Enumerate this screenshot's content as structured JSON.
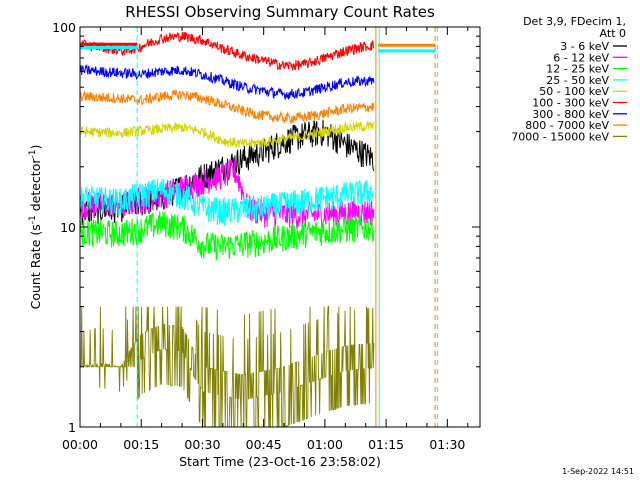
{
  "chart_data": {
    "type": "line",
    "title": "RHESSI Observing Summary Count Rates",
    "xlabel": "Start Time (23-Oct-16 23:58:02)",
    "ylabel": "Count Rate (s",
    "ylabel_sup": "-1",
    "ylabel_rest": " detector",
    "ylabel_sup2": "-1",
    "ylabel_end": ")",
    "y_scale": "log",
    "ylim": [
      1,
      100
    ],
    "xlim_minutes": [
      0,
      98
    ],
    "x_tick_labels": [
      "00:00",
      "00:15",
      "00:30",
      "00:45",
      "01:00",
      "01:15",
      "01:30"
    ],
    "x_tick_minutes": [
      0,
      15,
      30,
      45,
      60,
      75,
      90
    ],
    "y_tick_labels": [
      "1",
      "10",
      "100"
    ],
    "y_tick_values": [
      1,
      10,
      100
    ],
    "legend_header": [
      "Det 3,9, FDecim 1,",
      "Att 0"
    ],
    "legend_placement": "right",
    "footer": "1-Sep-2022 14:51",
    "background_color": "#ffffff",
    "series": [
      {
        "name": "3 - 6 keV",
        "color": "#000000",
        "x": [
          0,
          10,
          20,
          25,
          30,
          35,
          40,
          45,
          50,
          55,
          60,
          65,
          72
        ],
        "y": [
          12,
          12.5,
          14,
          16,
          18,
          20,
          22,
          24,
          27,
          29,
          30,
          26,
          22
        ]
      },
      {
        "name": "6 - 12 keV",
        "color": "#ff00ff",
        "x": [
          0,
          10,
          20,
          30,
          38,
          39,
          41,
          45,
          55,
          65,
          72
        ],
        "y": [
          13,
          13,
          14.5,
          17,
          19,
          17,
          12.5,
          11.8,
          11.5,
          11.8,
          12
        ]
      },
      {
        "name": "12 - 25 keV",
        "color": "#00ff00",
        "x": [
          0,
          10,
          15,
          20,
          25,
          30,
          35,
          45,
          55,
          65,
          72
        ],
        "y": [
          9.5,
          9.3,
          9.8,
          10.5,
          10,
          8.2,
          8,
          8.5,
          9.3,
          9.8,
          10
        ]
      },
      {
        "name": "25 - 50 keV",
        "color": "#00ffff",
        "x": [
          0,
          10,
          15,
          20,
          25,
          30,
          35,
          45,
          55,
          65,
          72
        ],
        "y": [
          14,
          13.5,
          14.5,
          15.5,
          14.5,
          12.5,
          12,
          12.5,
          13.5,
          14.5,
          15
        ]
      },
      {
        "name": "50 - 100 keV",
        "color": "#d4d400",
        "x": [
          0,
          10,
          20,
          25,
          30,
          35,
          40,
          45,
          50,
          55,
          60,
          65,
          72
        ],
        "y": [
          30,
          29.5,
          31,
          31.5,
          30,
          27,
          26,
          26.5,
          27.5,
          28.5,
          30,
          31.5,
          32
        ]
      },
      {
        "name": "100 - 300 keV",
        "color": "#ff0000",
        "x": [
          0,
          3,
          5,
          7,
          9,
          11,
          13,
          15,
          20,
          25,
          30,
          35,
          40,
          45,
          50,
          55,
          60,
          65,
          70,
          72
        ],
        "y": [
          82,
          80,
          80,
          78,
          77,
          76,
          78,
          80,
          88,
          90,
          86,
          78,
          72,
          68,
          64,
          65,
          70,
          76,
          80,
          81
        ]
      },
      {
        "name": "300 - 800 keV",
        "color": "#0000ff",
        "x": [
          0,
          10,
          15,
          20,
          25,
          30,
          35,
          40,
          45,
          50,
          55,
          60,
          65,
          72
        ],
        "y": [
          61,
          59,
          58,
          60,
          61,
          58,
          54,
          50,
          48,
          46,
          47,
          50,
          53,
          54
        ]
      },
      {
        "name": "800 - 7000 keV",
        "color": "#ff8000",
        "x": [
          0,
          10,
          15,
          20,
          25,
          30,
          35,
          40,
          45,
          50,
          55,
          60,
          65,
          72
        ],
        "y": [
          45,
          44,
          43,
          45,
          46,
          44,
          41,
          38,
          36,
          35,
          35.5,
          37,
          39,
          40
        ]
      },
      {
        "name": "7000 - 15000 keV",
        "color": "#808000",
        "x": [
          0,
          5,
          10,
          15,
          20,
          25,
          28,
          30,
          35,
          40,
          45,
          50,
          55,
          60,
          65,
          72
        ],
        "y": [
          2.2,
          2.3,
          2.2,
          3.2,
          3.6,
          3.5,
          2.6,
          2.2,
          2.1,
          2.0,
          2.1,
          2.2,
          2.4,
          2.6,
          2.8,
          2.9
        ]
      }
    ],
    "flat_segments": [
      {
        "name": "100 - 300 keV",
        "color": "#ff0000",
        "x": [
          0,
          14
        ],
        "y": [
          82,
          82
        ]
      },
      {
        "name": "25 - 50 keV",
        "color": "#00ffff",
        "x": [
          0,
          14
        ],
        "y": [
          79,
          79
        ]
      },
      {
        "name": "800 - 7000 keV",
        "color": "#ff8000",
        "x": [
          73,
          87
        ],
        "y": [
          81,
          81
        ]
      },
      {
        "name": "25 - 50 keV",
        "color": "#00ffff",
        "x": [
          73,
          87
        ],
        "y": [
          76,
          76
        ]
      }
    ],
    "vlines": [
      {
        "x": 0,
        "color": "#00ffff",
        "style": "solid"
      },
      {
        "x": 14,
        "color": "#00ffff",
        "style": "dashed"
      },
      {
        "x": 72.5,
        "color": "#ff8000",
        "style": "solid"
      },
      {
        "x": 73.3,
        "color": "#00ffff",
        "style": "solid"
      },
      {
        "x": 87,
        "color": "#ff8000",
        "style": "dashed"
      },
      {
        "x": 87.6,
        "color": "#00ffff",
        "style": "dashed"
      }
    ]
  }
}
